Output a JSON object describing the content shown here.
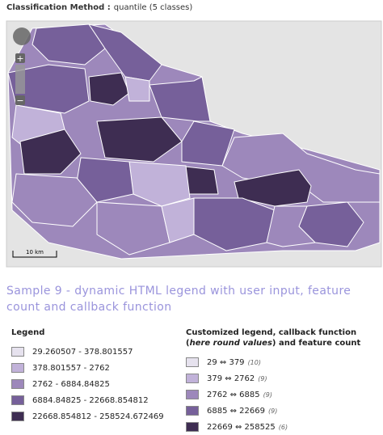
{
  "header": {
    "label": "Classification Method :",
    "value": "quantile (5 classes)"
  },
  "map": {
    "zoom_in": "+",
    "zoom_out": "−",
    "scale": "10 km"
  },
  "heading": "Sample 9 - dynamic HTML legend with user input, feature count and callback function",
  "legend": {
    "title": "Legend",
    "items": [
      {
        "label": "29.260507 - 378.801557",
        "color": "#e6e2ee"
      },
      {
        "label": "378.801557 - 2762",
        "color": "#c1b2d9"
      },
      {
        "label": "2762 - 6884.84825",
        "color": "#9d88bb"
      },
      {
        "label": "6884.84825 - 22668.854812",
        "color": "#76609a"
      },
      {
        "label": "22668.854812 - 258524.672469",
        "color": "#3e2d52"
      }
    ]
  },
  "custom_legend": {
    "title_parts": [
      "Customized legend, callback function (",
      "here round values",
      ") and feature count"
    ],
    "items": [
      {
        "label": "29 ⇔ 379",
        "count": "(10)",
        "color": "#e6e2ee"
      },
      {
        "label": "379 ⇔ 2762",
        "count": "(9)",
        "color": "#c1b2d9"
      },
      {
        "label": "2762 ⇔ 6885",
        "count": "(9)",
        "color": "#9d88bb"
      },
      {
        "label": "6885 ⇔ 22669",
        "count": "(9)",
        "color": "#76609a"
      },
      {
        "label": "22669 ⇔ 258525",
        "count": "(6)",
        "color": "#3e2d52"
      }
    ]
  }
}
